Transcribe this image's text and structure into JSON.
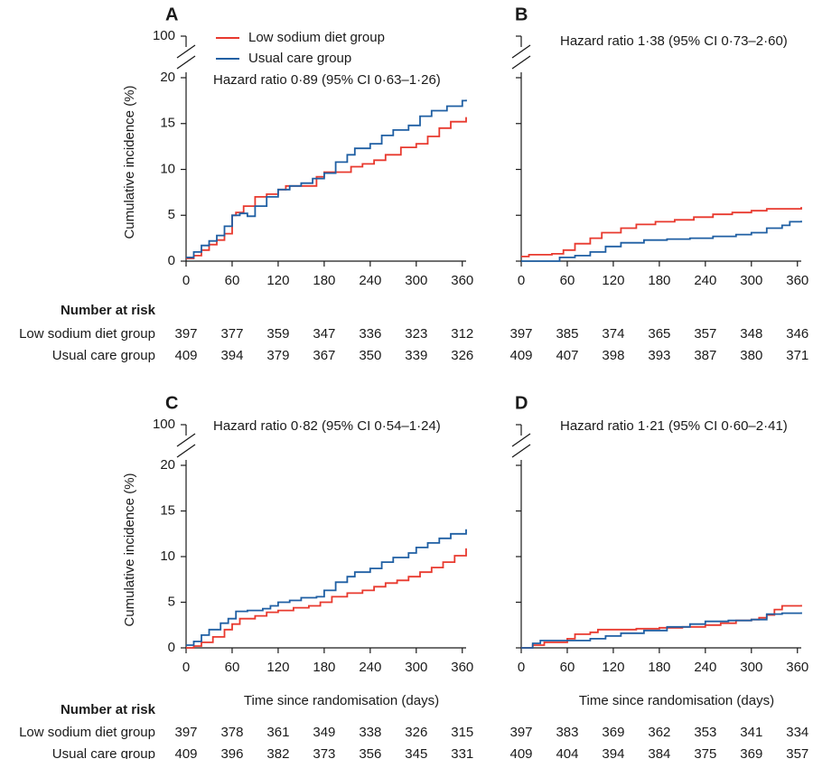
{
  "chart_data": [
    {
      "type": "line",
      "panel": "A",
      "ylabel": "Cumulative incidence (%)",
      "xlabel": "",
      "xlim": [
        0,
        365
      ],
      "ylim": [
        0,
        20
      ],
      "y_break_top_tick": 100,
      "x_ticks": [
        0,
        60,
        120,
        180,
        240,
        300,
        360
      ],
      "y_ticks": [
        0,
        5,
        10,
        15,
        20
      ],
      "annotation": "Hazard ratio 0·89 (95% CI 0·63–1·26)",
      "legend": {
        "placement": "top-left",
        "entries": [
          "Low sodium diet group",
          "Usual care group"
        ]
      },
      "series": [
        {
          "name": "Low sodium diet group",
          "color": "#e8392e",
          "points": [
            [
              0,
              0.3
            ],
            [
              10,
              0.6
            ],
            [
              20,
              1.2
            ],
            [
              30,
              1.8
            ],
            [
              40,
              2.3
            ],
            [
              50,
              3.0
            ],
            [
              60,
              5.0
            ],
            [
              65,
              5.3
            ],
            [
              75,
              6.0
            ],
            [
              90,
              7.0
            ],
            [
              105,
              7.3
            ],
            [
              120,
              7.8
            ],
            [
              130,
              8.2
            ],
            [
              150,
              8.2
            ],
            [
              170,
              9.2
            ],
            [
              180,
              9.7
            ],
            [
              200,
              9.7
            ],
            [
              215,
              10.3
            ],
            [
              230,
              10.6
            ],
            [
              245,
              11.0
            ],
            [
              260,
              11.6
            ],
            [
              280,
              12.4
            ],
            [
              300,
              12.8
            ],
            [
              315,
              13.6
            ],
            [
              330,
              14.5
            ],
            [
              345,
              15.2
            ],
            [
              365,
              15.7
            ]
          ]
        },
        {
          "name": "Usual care group",
          "color": "#1f5fa3",
          "points": [
            [
              0,
              0.4
            ],
            [
              10,
              1.0
            ],
            [
              20,
              1.7
            ],
            [
              30,
              2.2
            ],
            [
              40,
              2.8
            ],
            [
              50,
              3.8
            ],
            [
              60,
              5.0
            ],
            [
              70,
              5.2
            ],
            [
              80,
              4.9
            ],
            [
              90,
              6.0
            ],
            [
              105,
              7.0
            ],
            [
              120,
              7.8
            ],
            [
              135,
              8.2
            ],
            [
              150,
              8.5
            ],
            [
              165,
              9.0
            ],
            [
              180,
              9.6
            ],
            [
              195,
              10.8
            ],
            [
              210,
              11.6
            ],
            [
              220,
              12.3
            ],
            [
              240,
              12.8
            ],
            [
              255,
              13.7
            ],
            [
              270,
              14.3
            ],
            [
              290,
              14.8
            ],
            [
              305,
              15.8
            ],
            [
              320,
              16.4
            ],
            [
              340,
              16.9
            ],
            [
              360,
              17.5
            ],
            [
              365,
              17.6
            ]
          ]
        }
      ],
      "number_at_risk": {
        "header": "Number at risk",
        "rows": [
          {
            "label": "Low sodium diet group",
            "values": [
              "397",
              "377",
              "359",
              "347",
              "336",
              "323",
              "312"
            ]
          },
          {
            "label": "Usual care group",
            "values": [
              "409",
              "394",
              "379",
              "367",
              "350",
              "339",
              "326"
            ]
          }
        ]
      }
    },
    {
      "type": "line",
      "panel": "B",
      "ylabel": "",
      "xlabel": "",
      "xlim": [
        0,
        365
      ],
      "ylim": [
        0,
        20
      ],
      "y_break_top_tick": 100,
      "x_ticks": [
        0,
        60,
        120,
        180,
        240,
        300,
        360
      ],
      "y_ticks": [
        0,
        5,
        10,
        15,
        20
      ],
      "annotation": "Hazard ratio 1·38 (95% CI 0·73–2·60)",
      "series": [
        {
          "name": "Low sodium diet group",
          "color": "#e8392e",
          "points": [
            [
              0,
              0.5
            ],
            [
              10,
              0.7
            ],
            [
              40,
              0.8
            ],
            [
              55,
              1.2
            ],
            [
              70,
              1.9
            ],
            [
              90,
              2.5
            ],
            [
              105,
              3.1
            ],
            [
              130,
              3.6
            ],
            [
              150,
              4.0
            ],
            [
              175,
              4.3
            ],
            [
              200,
              4.5
            ],
            [
              225,
              4.8
            ],
            [
              250,
              5.1
            ],
            [
              275,
              5.3
            ],
            [
              300,
              5.5
            ],
            [
              320,
              5.7
            ],
            [
              365,
              5.9
            ]
          ]
        },
        {
          "name": "Usual care group",
          "color": "#1f5fa3",
          "points": [
            [
              0,
              0
            ],
            [
              40,
              0
            ],
            [
              50,
              0.4
            ],
            [
              70,
              0.6
            ],
            [
              90,
              1.0
            ],
            [
              110,
              1.6
            ],
            [
              130,
              2.0
            ],
            [
              160,
              2.3
            ],
            [
              190,
              2.4
            ],
            [
              220,
              2.5
            ],
            [
              250,
              2.7
            ],
            [
              280,
              2.9
            ],
            [
              300,
              3.1
            ],
            [
              320,
              3.6
            ],
            [
              340,
              3.9
            ],
            [
              350,
              4.3
            ],
            [
              365,
              4.4
            ]
          ]
        }
      ],
      "number_at_risk": {
        "rows": [
          {
            "values": [
              "397",
              "385",
              "374",
              "365",
              "357",
              "348",
              "346"
            ]
          },
          {
            "values": [
              "409",
              "407",
              "398",
              "393",
              "387",
              "380",
              "371"
            ]
          }
        ]
      }
    },
    {
      "type": "line",
      "panel": "C",
      "ylabel": "Cumulative incidence (%)",
      "xlabel": "Time since randomisation (days)",
      "xlim": [
        0,
        365
      ],
      "ylim": [
        0,
        20
      ],
      "y_break_top_tick": 100,
      "x_ticks": [
        0,
        60,
        120,
        180,
        240,
        300,
        360
      ],
      "y_ticks": [
        0,
        5,
        10,
        15,
        20
      ],
      "annotation": "Hazard ratio 0·82 (95% CI 0·54–1·24)",
      "series": [
        {
          "name": "Low sodium diet group",
          "color": "#e8392e",
          "points": [
            [
              0,
              0
            ],
            [
              10,
              0.2
            ],
            [
              20,
              0.6
            ],
            [
              35,
              1.2
            ],
            [
              50,
              2.0
            ],
            [
              60,
              2.6
            ],
            [
              70,
              3.2
            ],
            [
              90,
              3.5
            ],
            [
              105,
              3.9
            ],
            [
              120,
              4.1
            ],
            [
              140,
              4.4
            ],
            [
              160,
              4.6
            ],
            [
              175,
              5.0
            ],
            [
              190,
              5.6
            ],
            [
              210,
              6.0
            ],
            [
              230,
              6.3
            ],
            [
              245,
              6.7
            ],
            [
              260,
              7.1
            ],
            [
              275,
              7.4
            ],
            [
              290,
              7.8
            ],
            [
              305,
              8.3
            ],
            [
              320,
              8.8
            ],
            [
              335,
              9.4
            ],
            [
              350,
              10.1
            ],
            [
              365,
              10.9
            ]
          ]
        },
        {
          "name": "Usual care group",
          "color": "#1f5fa3",
          "points": [
            [
              0,
              0.3
            ],
            [
              10,
              0.7
            ],
            [
              20,
              1.4
            ],
            [
              30,
              2.0
            ],
            [
              45,
              2.7
            ],
            [
              55,
              3.2
            ],
            [
              65,
              4.0
            ],
            [
              80,
              4.1
            ],
            [
              100,
              4.3
            ],
            [
              110,
              4.6
            ],
            [
              120,
              5.0
            ],
            [
              135,
              5.2
            ],
            [
              150,
              5.5
            ],
            [
              170,
              5.6
            ],
            [
              180,
              6.3
            ],
            [
              195,
              7.2
            ],
            [
              210,
              7.8
            ],
            [
              220,
              8.3
            ],
            [
              240,
              8.7
            ],
            [
              255,
              9.4
            ],
            [
              270,
              9.9
            ],
            [
              290,
              10.4
            ],
            [
              300,
              11.0
            ],
            [
              315,
              11.5
            ],
            [
              330,
              12.0
            ],
            [
              345,
              12.5
            ],
            [
              365,
              13.0
            ]
          ]
        }
      ],
      "number_at_risk": {
        "header": "Number at risk",
        "rows": [
          {
            "label": "Low sodium diet group",
            "values": [
              "397",
              "378",
              "361",
              "349",
              "338",
              "326",
              "315"
            ]
          },
          {
            "label": "Usual care group",
            "values": [
              "409",
              "396",
              "382",
              "373",
              "356",
              "345",
              "331"
            ]
          }
        ]
      }
    },
    {
      "type": "line",
      "panel": "D",
      "ylabel": "",
      "xlabel": "Time since randomisation (days)",
      "xlim": [
        0,
        365
      ],
      "ylim": [
        0,
        20
      ],
      "y_break_top_tick": 100,
      "x_ticks": [
        0,
        60,
        120,
        180,
        240,
        300,
        360
      ],
      "y_ticks": [
        0,
        5,
        10,
        15,
        20
      ],
      "annotation": "Hazard ratio 1·21 (95% CI 0·60–2·41)",
      "series": [
        {
          "name": "Low sodium diet group",
          "color": "#e8392e",
          "points": [
            [
              0,
              0
            ],
            [
              15,
              0.3
            ],
            [
              30,
              0.6
            ],
            [
              60,
              1.0
            ],
            [
              70,
              1.5
            ],
            [
              90,
              1.7
            ],
            [
              100,
              2.0
            ],
            [
              150,
              2.1
            ],
            [
              180,
              2.2
            ],
            [
              210,
              2.3
            ],
            [
              240,
              2.5
            ],
            [
              260,
              2.7
            ],
            [
              280,
              3.0
            ],
            [
              300,
              3.1
            ],
            [
              310,
              3.3
            ],
            [
              320,
              3.6
            ],
            [
              330,
              4.2
            ],
            [
              340,
              4.6
            ],
            [
              365,
              4.7
            ]
          ]
        },
        {
          "name": "Usual care group",
          "color": "#1f5fa3",
          "points": [
            [
              0,
              0
            ],
            [
              15,
              0.5
            ],
            [
              25,
              0.8
            ],
            [
              60,
              0.8
            ],
            [
              90,
              1.0
            ],
            [
              110,
              1.3
            ],
            [
              130,
              1.6
            ],
            [
              160,
              1.9
            ],
            [
              190,
              2.3
            ],
            [
              220,
              2.6
            ],
            [
              240,
              2.9
            ],
            [
              270,
              3.0
            ],
            [
              300,
              3.1
            ],
            [
              320,
              3.7
            ],
            [
              340,
              3.8
            ],
            [
              365,
              3.9
            ]
          ]
        }
      ],
      "number_at_risk": {
        "rows": [
          {
            "values": [
              "397",
              "383",
              "369",
              "362",
              "353",
              "341",
              "334"
            ]
          },
          {
            "values": [
              "409",
              "404",
              "394",
              "384",
              "375",
              "369",
              "357"
            ]
          }
        ]
      }
    }
  ]
}
